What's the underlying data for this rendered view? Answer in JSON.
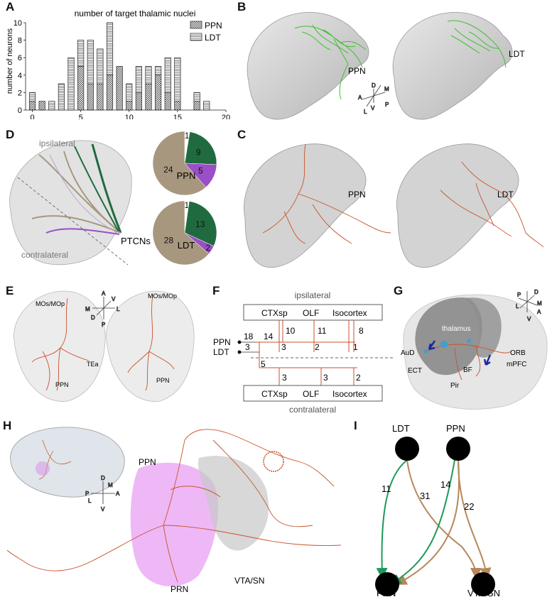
{
  "panels": {
    "A": {
      "letter": "A",
      "chart_data": {
        "type": "bar",
        "stacked": true,
        "title": "number of target thalamic nuclei",
        "ylabel": "number of neurons",
        "xlabel": "",
        "x": [
          0,
          1,
          2,
          3,
          4,
          5,
          6,
          7,
          8,
          9,
          10,
          11,
          12,
          13,
          14,
          15,
          16,
          17,
          18
        ],
        "series": [
          {
            "name": "PPN",
            "values": [
              1,
              1,
              0,
              0,
              0,
              5,
              3,
              3,
              4,
              5,
              1,
              2,
              3,
              4,
              2,
              1,
              0,
              1,
              0
            ]
          },
          {
            "name": "LDT",
            "values": [
              1,
              0,
              1,
              3,
              6,
              3,
              5,
              4,
              6,
              0,
              2,
              3,
              2,
              1,
              4,
              5,
              0,
              1,
              1
            ]
          }
        ],
        "xticks": [
          0,
          5,
          10,
          15,
          20
        ],
        "yticks": [
          0,
          2,
          4,
          6,
          8,
          10
        ],
        "xlim": [
          -0.7,
          20
        ],
        "ylim": [
          0,
          10
        ],
        "legend": "top-right",
        "colors": {
          "PPN": "#555555",
          "LDT": "#ffffff"
        }
      }
    },
    "B": {
      "letter": "B",
      "labels": [
        "PPN",
        "LDT"
      ],
      "compass": {
        "D": "D",
        "A": "A",
        "M": "M",
        "L": "L",
        "P": "P",
        "V": "V"
      }
    },
    "C": {
      "letter": "C",
      "labels": [
        "PPN",
        "LDT"
      ]
    },
    "D": {
      "letter": "D",
      "labels": {
        "ipsi": "ipsilateral",
        "contra": "contralateral",
        "ptcns": "PTCNs"
      },
      "pies": [
        {
          "name": "PPN",
          "slices": [
            {
              "value": 1,
              "color": "#ffffff"
            },
            {
              "value": 9,
              "color": "#1f6b3f"
            },
            {
              "value": 5,
              "color": "#9a4fc7"
            },
            {
              "value": 24,
              "color": "#a8977f"
            }
          ],
          "labels": [
            "1",
            "9",
            "5",
            "24"
          ]
        },
        {
          "name": "LDT",
          "slices": [
            {
              "value": 1,
              "color": "#ffffff"
            },
            {
              "value": 13,
              "color": "#1f6b3f"
            },
            {
              "value": 2,
              "color": "#9a4fc7"
            },
            {
              "value": 28,
              "color": "#a8977f"
            }
          ],
          "labels": [
            "1",
            "13",
            "2",
            "28"
          ]
        }
      ]
    },
    "E": {
      "letter": "E",
      "labels": {
        "mos": "MOs/MOp",
        "tea": "TEa",
        "ppn": "PPN"
      },
      "compass": {
        "A": "A",
        "V": "V",
        "M": "M",
        "L": "L",
        "D": "D",
        "P": "P"
      }
    },
    "F": {
      "letter": "F",
      "ipsi": "ipsilateral",
      "contra": "contralateral",
      "targets": [
        "CTXsp",
        "OLF",
        "Isocortex"
      ],
      "rows": [
        "PPN",
        "LDT"
      ],
      "numbers": {
        "n18": "18",
        "n14": "14",
        "n10": "10",
        "n11": "11",
        "n8": "8",
        "n3a": "3",
        "n3b": "3",
        "n2a": "2",
        "n1": "1",
        "n5": "5",
        "n3c": "3",
        "n3d": "3",
        "n2b": "2"
      }
    },
    "G": {
      "letter": "G",
      "labels": {
        "thalamus": "thalamus",
        "aud": "AuD",
        "ect": "ECT",
        "bf": "BF",
        "pir": "Pir",
        "orb": "ORB",
        "mpfc": "mPFC"
      },
      "compass": {
        "P": "P",
        "D": "D",
        "M": "M",
        "L": "L",
        "A": "A",
        "V": "V"
      }
    },
    "H": {
      "letter": "H",
      "labels": {
        "ppn": "PPN",
        "prn": "PRN",
        "vta": "VTA/SN"
      },
      "compass": {
        "D": "D",
        "M": "M",
        "P": "P",
        "A": "A",
        "L": "L",
        "V": "V"
      }
    },
    "I": {
      "letter": "I",
      "nodes": {
        "ldt": "LDT",
        "ppn": "PPN",
        "prn": "PRN",
        "vta": "VTA/SN"
      },
      "edges": {
        "ldt_prn": "11",
        "ldt_vta": "31",
        "ppn_prn": "14",
        "ppn_vta": "22"
      },
      "colors": {
        "green": "#1e9a5a",
        "tan": "#b5895a"
      }
    }
  }
}
